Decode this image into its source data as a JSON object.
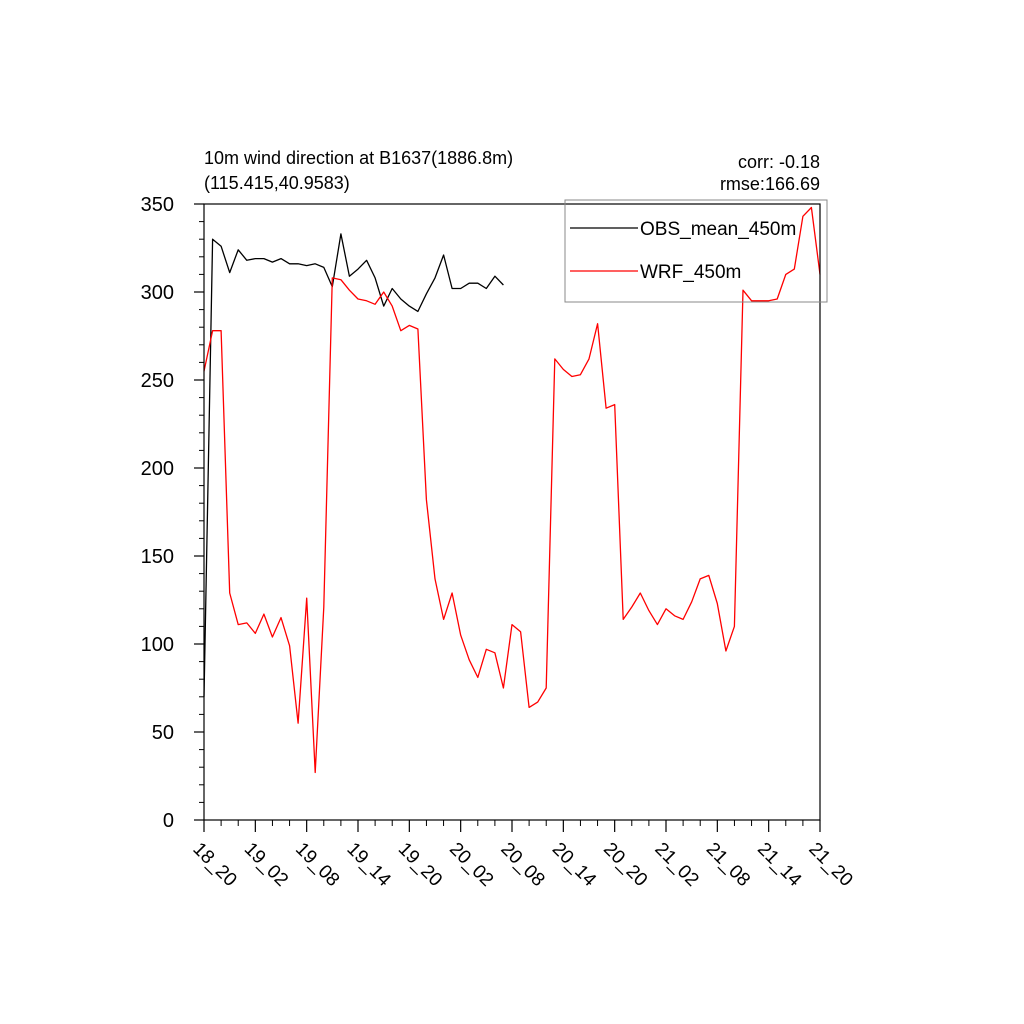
{
  "chart_data": {
    "type": "line",
    "title_line1": "10m wind direction at B1637(1886.8m)",
    "title_line2": "(115.415,40.9583)",
    "stats": {
      "corr": "corr: -0.18",
      "rmse": "rmse:166.69"
    },
    "ylim": [
      0,
      350
    ],
    "yticks": [
      0,
      50,
      100,
      150,
      200,
      250,
      300,
      350
    ],
    "x_tick_labels": [
      "18_20",
      "19_02",
      "19_08",
      "19_14",
      "19_20",
      "20_02",
      "20_08",
      "20_14",
      "20_20",
      "21_02",
      "21_08",
      "21_14",
      "21_20"
    ],
    "x_unit_hours": 72,
    "x_tick_step_hours": 6,
    "legend_position": "top-right",
    "series": [
      {
        "name": "OBS_mean_450m",
        "color": "#000000",
        "points": [
          [
            0,
            70
          ],
          [
            1,
            330
          ],
          [
            2,
            326
          ],
          [
            3,
            311
          ],
          [
            4,
            324
          ],
          [
            5,
            318
          ],
          [
            6,
            319
          ],
          [
            7,
            319
          ],
          [
            8,
            317
          ],
          [
            9,
            319
          ],
          [
            10,
            316
          ],
          [
            11,
            316
          ],
          [
            12,
            315
          ],
          [
            13,
            316
          ],
          [
            14,
            314
          ],
          [
            15,
            303
          ],
          [
            16,
            333
          ],
          [
            17,
            309
          ],
          [
            18,
            313
          ],
          [
            19,
            318
          ],
          [
            20,
            308
          ],
          [
            21,
            292
          ],
          [
            22,
            302
          ],
          [
            23,
            296
          ],
          [
            24,
            292
          ],
          [
            25,
            289
          ],
          [
            26,
            299
          ],
          [
            27,
            308
          ],
          [
            28,
            321
          ],
          [
            29,
            302
          ],
          [
            30,
            302
          ],
          [
            31,
            305
          ],
          [
            32,
            305
          ],
          [
            33,
            302
          ],
          [
            34,
            309
          ],
          [
            35,
            304
          ]
        ]
      },
      {
        "name": "WRF_450m",
        "color": "#ff0000",
        "points": [
          [
            0,
            255
          ],
          [
            1,
            278
          ],
          [
            2,
            278
          ],
          [
            3,
            129
          ],
          [
            4,
            111
          ],
          [
            5,
            112
          ],
          [
            6,
            106
          ],
          [
            7,
            117
          ],
          [
            8,
            104
          ],
          [
            9,
            115
          ],
          [
            10,
            99
          ],
          [
            11,
            55
          ],
          [
            12,
            126
          ],
          [
            13,
            27
          ],
          [
            14,
            121
          ],
          [
            15,
            308
          ],
          [
            16,
            307
          ],
          [
            17,
            301
          ],
          [
            18,
            296
          ],
          [
            19,
            295
          ],
          [
            20,
            293
          ],
          [
            21,
            300
          ],
          [
            22,
            292
          ],
          [
            23,
            278
          ],
          [
            24,
            281
          ],
          [
            25,
            279
          ],
          [
            26,
            182
          ],
          [
            27,
            137
          ],
          [
            28,
            114
          ],
          [
            29,
            129
          ],
          [
            30,
            105
          ],
          [
            31,
            91
          ],
          [
            32,
            81
          ],
          [
            33,
            97
          ],
          [
            34,
            95
          ],
          [
            35,
            75
          ],
          [
            36,
            111
          ],
          [
            37,
            107
          ],
          [
            38,
            64
          ],
          [
            39,
            67
          ],
          [
            40,
            75
          ],
          [
            41,
            262
          ],
          [
            42,
            256
          ],
          [
            43,
            252
          ],
          [
            44,
            253
          ],
          [
            45,
            262
          ],
          [
            46,
            282
          ],
          [
            47,
            234
          ],
          [
            48,
            236
          ],
          [
            49,
            114
          ],
          [
            50,
            121
          ],
          [
            51,
            129
          ],
          [
            52,
            119
          ],
          [
            53,
            111
          ],
          [
            54,
            120
          ],
          [
            55,
            116
          ],
          [
            56,
            114
          ],
          [
            57,
            124
          ],
          [
            58,
            137
          ],
          [
            59,
            139
          ],
          [
            60,
            123
          ],
          [
            61,
            96
          ],
          [
            62,
            110
          ],
          [
            63,
            301
          ],
          [
            64,
            295
          ],
          [
            65,
            295
          ],
          [
            66,
            295
          ],
          [
            67,
            296
          ],
          [
            68,
            310
          ],
          [
            69,
            313
          ],
          [
            70,
            343
          ],
          [
            71,
            348
          ],
          [
            72,
            310
          ]
        ]
      }
    ]
  }
}
